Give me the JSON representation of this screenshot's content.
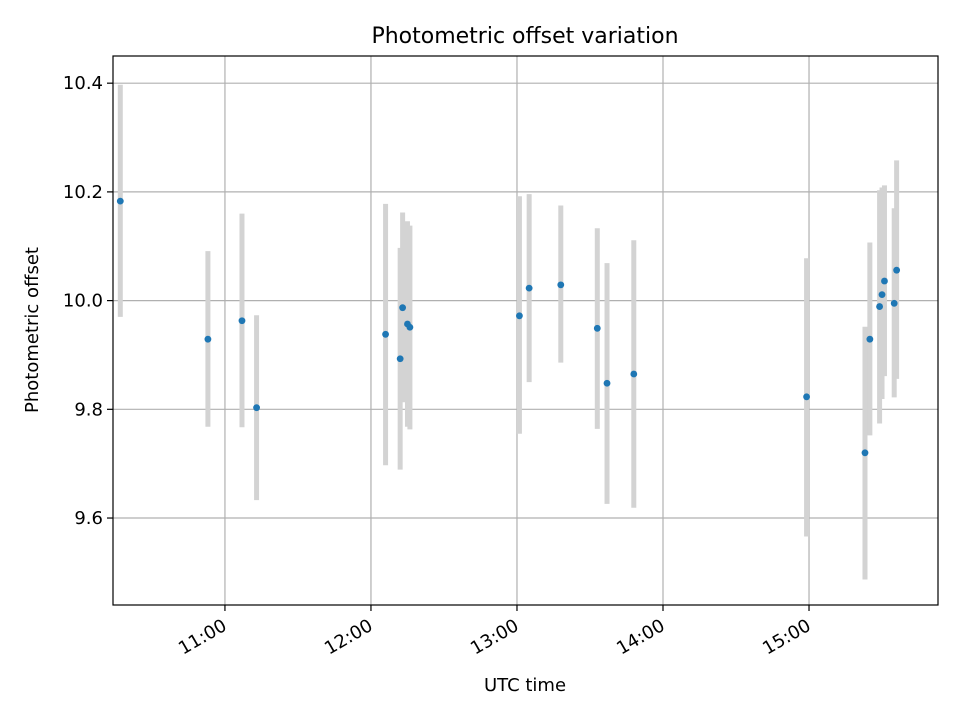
{
  "chart_data": {
    "type": "scatter",
    "title": "Photometric offset variation",
    "xlabel": "UTC time",
    "ylabel": "Photometric offset",
    "x_ticks": [
      "11:00",
      "12:00",
      "13:00",
      "14:00",
      "15:00"
    ],
    "y_ticks": [
      "9.6",
      "9.8",
      "10.0",
      "10.2",
      "10.4"
    ],
    "xlim": [
      "10:14",
      "15:53"
    ],
    "ylim": [
      9.44,
      10.45
    ],
    "grid": true,
    "point_color": "#1f77b4",
    "errorbar_color": "#d3d3d3",
    "points": [
      {
        "x": "10:17",
        "y": 10.183,
        "ylow": 9.97,
        "yhigh": 10.397
      },
      {
        "x": "10:53",
        "y": 9.929,
        "ylow": 9.768,
        "yhigh": 10.091
      },
      {
        "x": "11:07",
        "y": 9.963,
        "ylow": 9.767,
        "yhigh": 10.16
      },
      {
        "x": "11:13",
        "y": 9.803,
        "ylow": 9.633,
        "yhigh": 9.973
      },
      {
        "x": "12:06",
        "y": 9.938,
        "ylow": 9.697,
        "yhigh": 10.178
      },
      {
        "x": "12:12",
        "y": 9.893,
        "ylow": 9.689,
        "yhigh": 10.097
      },
      {
        "x": "12:13",
        "y": 9.987,
        "ylow": 9.813,
        "yhigh": 10.162
      },
      {
        "x": "12:15",
        "y": 9.957,
        "ylow": 9.768,
        "yhigh": 10.146
      },
      {
        "x": "12:16",
        "y": 9.951,
        "ylow": 9.763,
        "yhigh": 10.138
      },
      {
        "x": "13:01",
        "y": 9.972,
        "ylow": 9.755,
        "yhigh": 10.192
      },
      {
        "x": "13:05",
        "y": 10.023,
        "ylow": 9.85,
        "yhigh": 10.196
      },
      {
        "x": "13:18",
        "y": 10.029,
        "ylow": 9.886,
        "yhigh": 10.175
      },
      {
        "x": "13:33",
        "y": 9.949,
        "ylow": 9.764,
        "yhigh": 10.133
      },
      {
        "x": "13:37",
        "y": 9.848,
        "ylow": 9.626,
        "yhigh": 10.069
      },
      {
        "x": "13:48",
        "y": 9.865,
        "ylow": 9.619,
        "yhigh": 10.111
      },
      {
        "x": "14:59",
        "y": 9.823,
        "ylow": 9.566,
        "yhigh": 10.078
      },
      {
        "x": "15:23",
        "y": 9.72,
        "ylow": 9.487,
        "yhigh": 9.952
      },
      {
        "x": "15:25",
        "y": 9.929,
        "ylow": 9.752,
        "yhigh": 10.107
      },
      {
        "x": "15:29",
        "y": 9.989,
        "ylow": 9.774,
        "yhigh": 10.203
      },
      {
        "x": "15:30",
        "y": 10.011,
        "ylow": 9.819,
        "yhigh": 10.208
      },
      {
        "x": "15:31",
        "y": 10.036,
        "ylow": 9.861,
        "yhigh": 10.212
      },
      {
        "x": "15:35",
        "y": 9.995,
        "ylow": 9.822,
        "yhigh": 10.17
      },
      {
        "x": "15:36",
        "y": 10.056,
        "ylow": 9.856,
        "yhigh": 10.258
      }
    ]
  }
}
